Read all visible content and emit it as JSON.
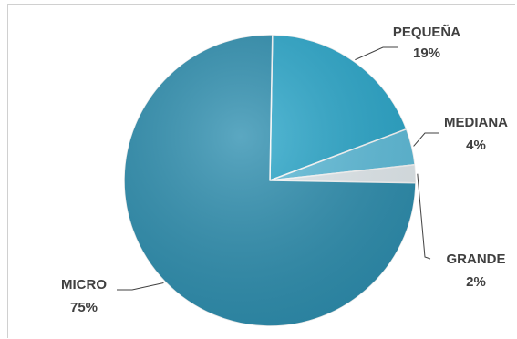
{
  "chart_data": {
    "type": "pie",
    "slices": [
      {
        "label": "PEQUEÑA",
        "value": 19,
        "value_label": "19%",
        "color": "#2aa8cc"
      },
      {
        "label": "MEDIANA",
        "value": 4,
        "value_label": "4%",
        "color": "#5fbfdd"
      },
      {
        "label": "GRANDE",
        "value": 2,
        "value_label": "2%",
        "color": "#e6eef2"
      },
      {
        "label": "MICRO",
        "value": 75,
        "value_label": "75%",
        "color": "#2d8fb0"
      }
    ],
    "legend": "none",
    "labels": "outside with leader lines"
  }
}
